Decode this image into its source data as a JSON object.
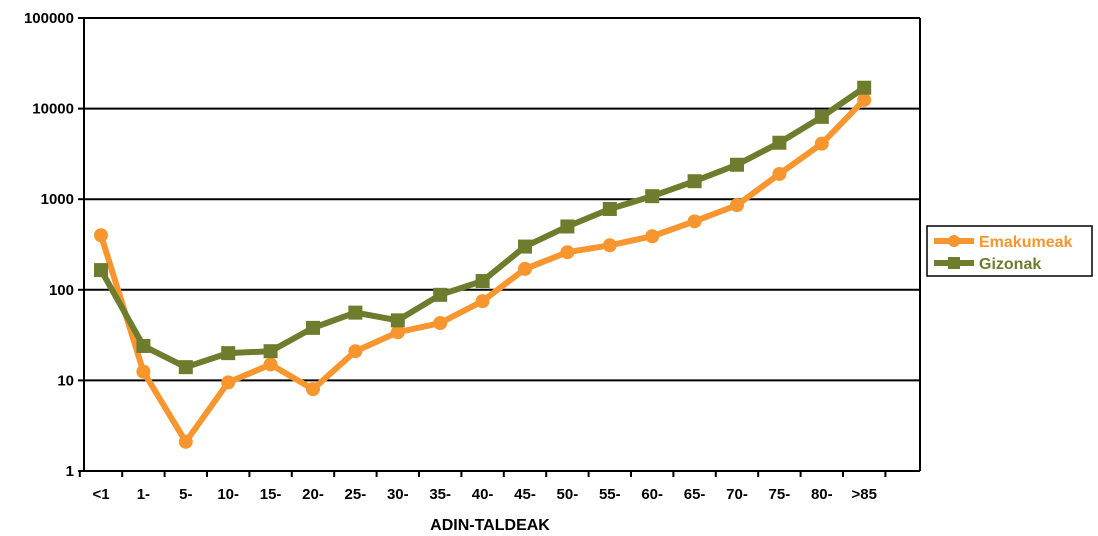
{
  "chart_data": {
    "type": "line",
    "title": "",
    "xlabel": "ADIN-TALDEAK",
    "ylabel": "",
    "y_scale": "log",
    "ylim": [
      1,
      100000
    ],
    "y_ticks": [
      1,
      10,
      100,
      1000,
      10000,
      100000
    ],
    "y_tick_labels": [
      "1",
      "10",
      "100",
      "1000",
      "10000",
      "100000"
    ],
    "grid": true,
    "legend_position": "right",
    "categories": [
      "<1",
      "1-",
      "5-",
      "10-",
      "15-",
      "20-",
      "25-",
      "30-",
      "35-",
      "40-",
      "45-",
      "50-",
      "55-",
      "60-",
      "65-",
      "70-",
      "75-",
      "80-",
      ">85"
    ],
    "series": [
      {
        "name": "Emakumeak",
        "color": "#F7962E",
        "marker": "circle",
        "values": [
          400,
          12.5,
          2.1,
          9.5,
          15,
          8,
          21,
          34,
          43,
          75,
          170,
          260,
          310,
          390,
          570,
          860,
          1900,
          4100,
          12500
        ]
      },
      {
        "name": "Gizonak",
        "color": "#6E7C2E",
        "marker": "square",
        "values": [
          165,
          24,
          14,
          20,
          21,
          38,
          56,
          46,
          88,
          125,
          300,
          500,
          780,
          1080,
          1580,
          2400,
          4200,
          8100,
          17000
        ]
      }
    ]
  }
}
